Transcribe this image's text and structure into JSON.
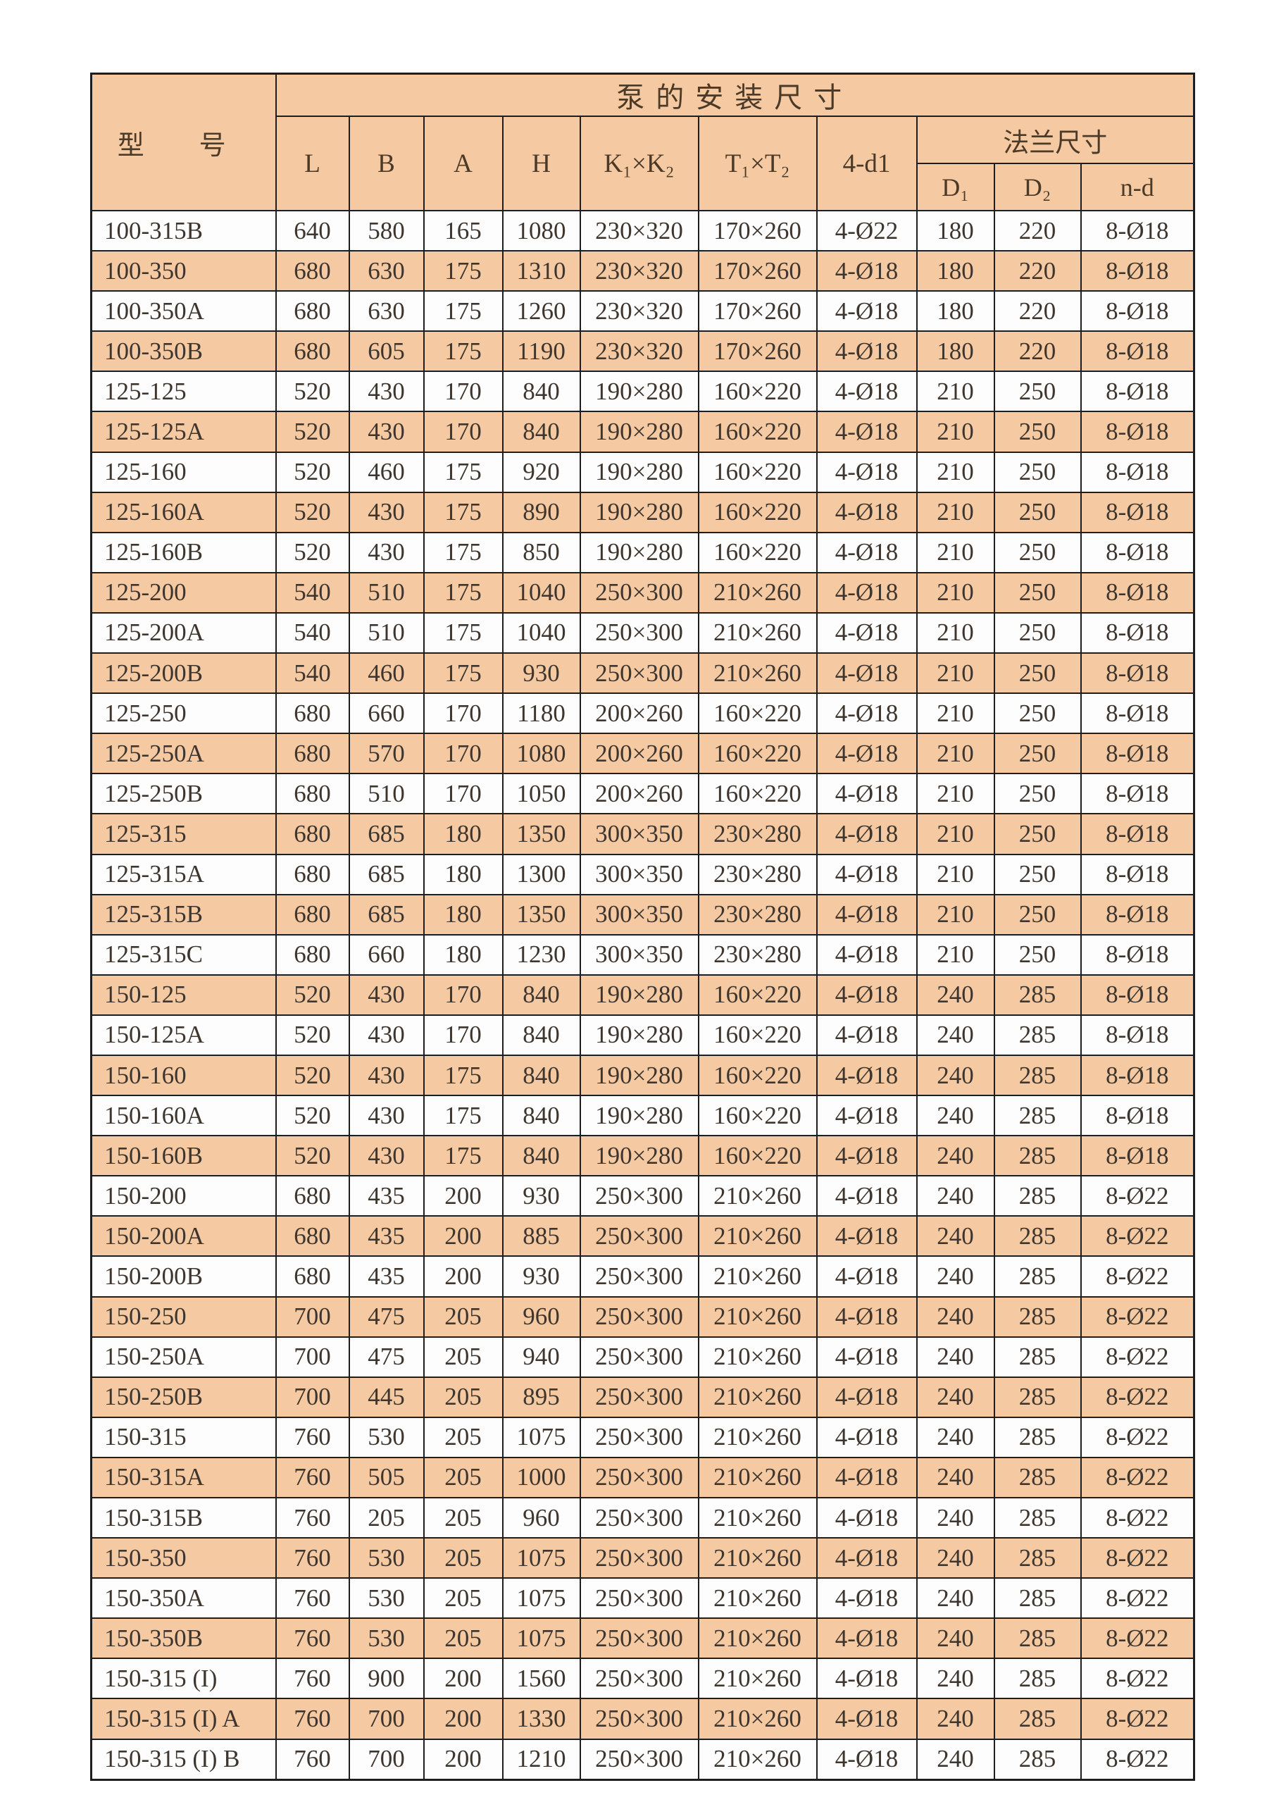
{
  "colors": {
    "page_bg": "#ffffff",
    "stripe": "#f5caa2",
    "row_bg": "#fdfdfd",
    "border": "#1e1e1e",
    "text": "#3e362e",
    "header_text": "#4c3a28"
  },
  "table": {
    "title": "泵的安装尺寸",
    "model_header": "型 号",
    "flange_header": "法兰尺寸",
    "columns": [
      "L",
      "B",
      "A",
      "H",
      "K₁×K₂",
      "T₁×T₂",
      "4-d1"
    ],
    "flange_columns": [
      "D₁",
      "D₂",
      "n-d"
    ],
    "rows": [
      [
        "100-315B",
        "640",
        "580",
        "165",
        "1080",
        "230×320",
        "170×260",
        "4-Ø22",
        "180",
        "220",
        "8-Ø18"
      ],
      [
        "100-350",
        "680",
        "630",
        "175",
        "1310",
        "230×320",
        "170×260",
        "4-Ø18",
        "180",
        "220",
        "8-Ø18"
      ],
      [
        "100-350A",
        "680",
        "630",
        "175",
        "1260",
        "230×320",
        "170×260",
        "4-Ø18",
        "180",
        "220",
        "8-Ø18"
      ],
      [
        "100-350B",
        "680",
        "605",
        "175",
        "1190",
        "230×320",
        "170×260",
        "4-Ø18",
        "180",
        "220",
        "8-Ø18"
      ],
      [
        "125-125",
        "520",
        "430",
        "170",
        "840",
        "190×280",
        "160×220",
        "4-Ø18",
        "210",
        "250",
        "8-Ø18"
      ],
      [
        "125-125A",
        "520",
        "430",
        "170",
        "840",
        "190×280",
        "160×220",
        "4-Ø18",
        "210",
        "250",
        "8-Ø18"
      ],
      [
        "125-160",
        "520",
        "460",
        "175",
        "920",
        "190×280",
        "160×220",
        "4-Ø18",
        "210",
        "250",
        "8-Ø18"
      ],
      [
        "125-160A",
        "520",
        "430",
        "175",
        "890",
        "190×280",
        "160×220",
        "4-Ø18",
        "210",
        "250",
        "8-Ø18"
      ],
      [
        "125-160B",
        "520",
        "430",
        "175",
        "850",
        "190×280",
        "160×220",
        "4-Ø18",
        "210",
        "250",
        "8-Ø18"
      ],
      [
        "125-200",
        "540",
        "510",
        "175",
        "1040",
        "250×300",
        "210×260",
        "4-Ø18",
        "210",
        "250",
        "8-Ø18"
      ],
      [
        "125-200A",
        "540",
        "510",
        "175",
        "1040",
        "250×300",
        "210×260",
        "4-Ø18",
        "210",
        "250",
        "8-Ø18"
      ],
      [
        "125-200B",
        "540",
        "460",
        "175",
        "930",
        "250×300",
        "210×260",
        "4-Ø18",
        "210",
        "250",
        "8-Ø18"
      ],
      [
        "125-250",
        "680",
        "660",
        "170",
        "1180",
        "200×260",
        "160×220",
        "4-Ø18",
        "210",
        "250",
        "8-Ø18"
      ],
      [
        "125-250A",
        "680",
        "570",
        "170",
        "1080",
        "200×260",
        "160×220",
        "4-Ø18",
        "210",
        "250",
        "8-Ø18"
      ],
      [
        "125-250B",
        "680",
        "510",
        "170",
        "1050",
        "200×260",
        "160×220",
        "4-Ø18",
        "210",
        "250",
        "8-Ø18"
      ],
      [
        "125-315",
        "680",
        "685",
        "180",
        "1350",
        "300×350",
        "230×280",
        "4-Ø18",
        "210",
        "250",
        "8-Ø18"
      ],
      [
        "125-315A",
        "680",
        "685",
        "180",
        "1300",
        "300×350",
        "230×280",
        "4-Ø18",
        "210",
        "250",
        "8-Ø18"
      ],
      [
        "125-315B",
        "680",
        "685",
        "180",
        "1350",
        "300×350",
        "230×280",
        "4-Ø18",
        "210",
        "250",
        "8-Ø18"
      ],
      [
        "125-315C",
        "680",
        "660",
        "180",
        "1230",
        "300×350",
        "230×280",
        "4-Ø18",
        "210",
        "250",
        "8-Ø18"
      ],
      [
        "150-125",
        "520",
        "430",
        "170",
        "840",
        "190×280",
        "160×220",
        "4-Ø18",
        "240",
        "285",
        "8-Ø18"
      ],
      [
        "150-125A",
        "520",
        "430",
        "170",
        "840",
        "190×280",
        "160×220",
        "4-Ø18",
        "240",
        "285",
        "8-Ø18"
      ],
      [
        "150-160",
        "520",
        "430",
        "175",
        "840",
        "190×280",
        "160×220",
        "4-Ø18",
        "240",
        "285",
        "8-Ø18"
      ],
      [
        "150-160A",
        "520",
        "430",
        "175",
        "840",
        "190×280",
        "160×220",
        "4-Ø18",
        "240",
        "285",
        "8-Ø18"
      ],
      [
        "150-160B",
        "520",
        "430",
        "175",
        "840",
        "190×280",
        "160×220",
        "4-Ø18",
        "240",
        "285",
        "8-Ø18"
      ],
      [
        "150-200",
        "680",
        "435",
        "200",
        "930",
        "250×300",
        "210×260",
        "4-Ø18",
        "240",
        "285",
        "8-Ø22"
      ],
      [
        "150-200A",
        "680",
        "435",
        "200",
        "885",
        "250×300",
        "210×260",
        "4-Ø18",
        "240",
        "285",
        "8-Ø22"
      ],
      [
        "150-200B",
        "680",
        "435",
        "200",
        "930",
        "250×300",
        "210×260",
        "4-Ø18",
        "240",
        "285",
        "8-Ø22"
      ],
      [
        "150-250",
        "700",
        "475",
        "205",
        "960",
        "250×300",
        "210×260",
        "4-Ø18",
        "240",
        "285",
        "8-Ø22"
      ],
      [
        "150-250A",
        "700",
        "475",
        "205",
        "940",
        "250×300",
        "210×260",
        "4-Ø18",
        "240",
        "285",
        "8-Ø22"
      ],
      [
        "150-250B",
        "700",
        "445",
        "205",
        "895",
        "250×300",
        "210×260",
        "4-Ø18",
        "240",
        "285",
        "8-Ø22"
      ],
      [
        "150-315",
        "760",
        "530",
        "205",
        "1075",
        "250×300",
        "210×260",
        "4-Ø18",
        "240",
        "285",
        "8-Ø22"
      ],
      [
        "150-315A",
        "760",
        "505",
        "205",
        "1000",
        "250×300",
        "210×260",
        "4-Ø18",
        "240",
        "285",
        "8-Ø22"
      ],
      [
        "150-315B",
        "760",
        "205",
        "205",
        "960",
        "250×300",
        "210×260",
        "4-Ø18",
        "240",
        "285",
        "8-Ø22"
      ],
      [
        "150-350",
        "760",
        "530",
        "205",
        "1075",
        "250×300",
        "210×260",
        "4-Ø18",
        "240",
        "285",
        "8-Ø22"
      ],
      [
        "150-350A",
        "760",
        "530",
        "205",
        "1075",
        "250×300",
        "210×260",
        "4-Ø18",
        "240",
        "285",
        "8-Ø22"
      ],
      [
        "150-350B",
        "760",
        "530",
        "205",
        "1075",
        "250×300",
        "210×260",
        "4-Ø18",
        "240",
        "285",
        "8-Ø22"
      ],
      [
        "150-315 (I)",
        "760",
        "900",
        "200",
        "1560",
        "250×300",
        "210×260",
        "4-Ø18",
        "240",
        "285",
        "8-Ø22"
      ],
      [
        "150-315 (I) A",
        "760",
        "700",
        "200",
        "1330",
        "250×300",
        "210×260",
        "4-Ø18",
        "240",
        "285",
        "8-Ø22"
      ],
      [
        "150-315 (I) B",
        "760",
        "700",
        "200",
        "1210",
        "250×300",
        "210×260",
        "4-Ø18",
        "240",
        "285",
        "8-Ø22"
      ]
    ]
  }
}
